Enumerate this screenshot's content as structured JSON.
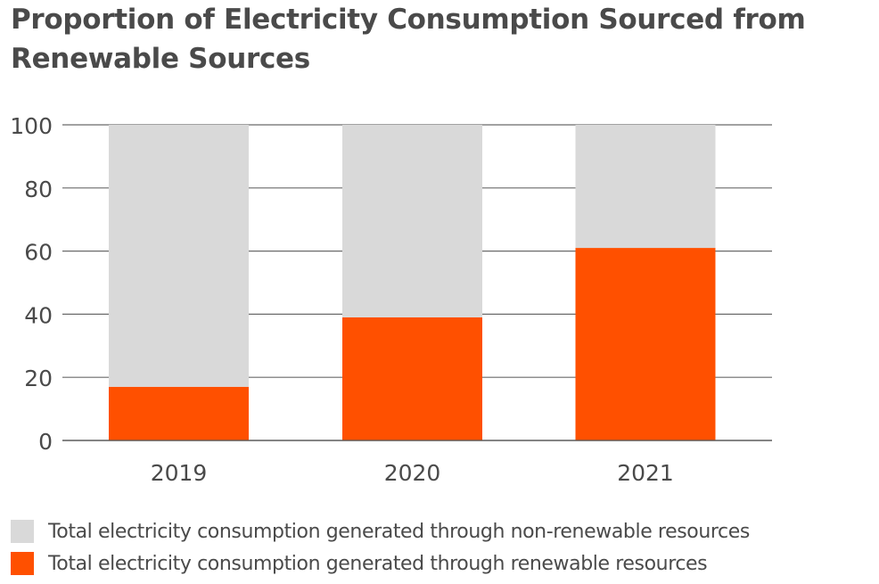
{
  "chart_data": {
    "type": "bar",
    "stacked": true,
    "title": "Proportion of Electricity Consumption Sourced from Renewable Sources",
    "xlabel": "",
    "ylabel": "",
    "categories": [
      "2019",
      "2020",
      "2021"
    ],
    "series": [
      {
        "name": "Total electricity consumption generated through renewable resources",
        "color": "#ff5000",
        "values": [
          17,
          39,
          61
        ]
      },
      {
        "name": "Total electricity consumption generated through non-renewable resources",
        "color": "#d9d9d9",
        "values": [
          83,
          61,
          39
        ]
      }
    ],
    "ylim": [
      0,
      100
    ],
    "yticks": [
      "0",
      "20",
      "40",
      "60",
      "80",
      "100"
    ],
    "grid": true,
    "legend_position": "bottom-left"
  },
  "legend": {
    "items": [
      {
        "label": "Total electricity consumption generated through non-renewable resources",
        "color": "#d9d9d9"
      },
      {
        "label": "Total electricity consumption generated through renewable resources",
        "color": "#ff5000"
      }
    ]
  }
}
